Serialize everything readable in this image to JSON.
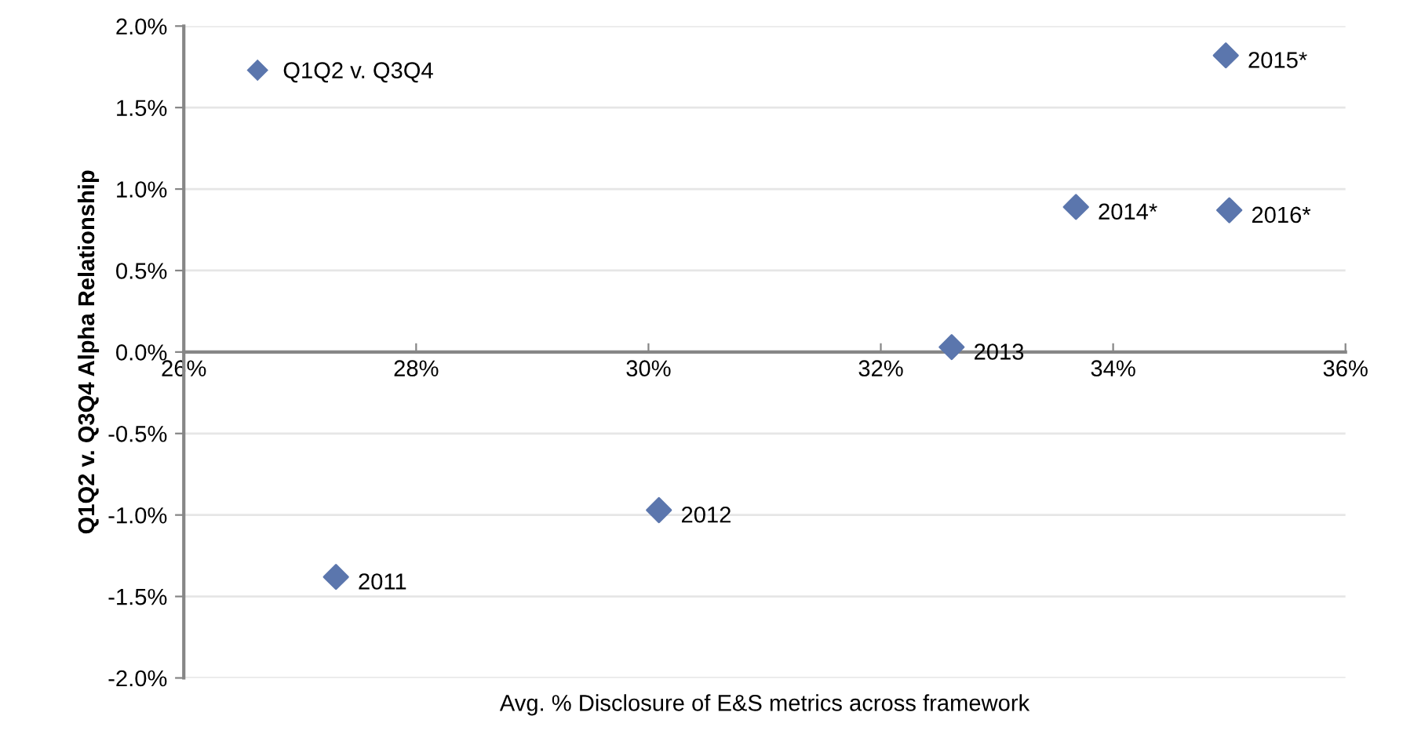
{
  "chart_data": {
    "type": "scatter",
    "xlabel": "Avg. % Disclosure of E&S metrics across framework",
    "ylabel": "Q1Q2 v. Q3Q4 Alpha Relationship",
    "x": [
      27.31,
      30.09,
      32.61,
      33.68,
      34.97,
      35.0
    ],
    "series": [
      {
        "name": "Q1Q2 v. Q3Q4",
        "color": "#5b76ad",
        "values": [
          -1.38,
          -0.97,
          0.03,
          0.89,
          1.82,
          0.87
        ]
      }
    ],
    "xlim": [
      26,
      36
    ],
    "xticks": [
      {
        "value": 26,
        "label": "26%"
      },
      {
        "value": 28,
        "label": "28%"
      },
      {
        "value": 30,
        "label": "30%"
      },
      {
        "value": 32,
        "label": "32%"
      },
      {
        "value": 34,
        "label": "34%"
      },
      {
        "value": 36,
        "label": "36%"
      }
    ],
    "ylim": [
      -2.0,
      2.0
    ],
    "yticks": [
      {
        "value": -2.0,
        "label": "-2.0%"
      },
      {
        "value": -1.5,
        "label": "-1.5%"
      },
      {
        "value": -1.0,
        "label": "-1.0%"
      },
      {
        "value": -0.5,
        "label": "-0.5%"
      },
      {
        "value": 0.0,
        "label": "0.0%"
      },
      {
        "value": 0.5,
        "label": "0.5%"
      },
      {
        "value": 1.0,
        "label": "1.0%"
      },
      {
        "value": 1.5,
        "label": "1.5%"
      },
      {
        "value": 2.0,
        "label": "2.0%"
      }
    ],
    "annotations": [
      {
        "text": "2011",
        "x": 27.31,
        "y": -1.38
      },
      {
        "text": "2012",
        "x": 30.09,
        "y": -0.97
      },
      {
        "text": "2013",
        "x": 32.61,
        "y": 0.03
      },
      {
        "text": "2014*",
        "x": 33.68,
        "y": 0.89
      },
      {
        "text": "2015*",
        "x": 34.97,
        "y": 1.82
      },
      {
        "text": "2016*",
        "x": 35.0,
        "y": 0.87
      }
    ],
    "grid": "y",
    "legend": "top left",
    "marker": "diamond"
  }
}
